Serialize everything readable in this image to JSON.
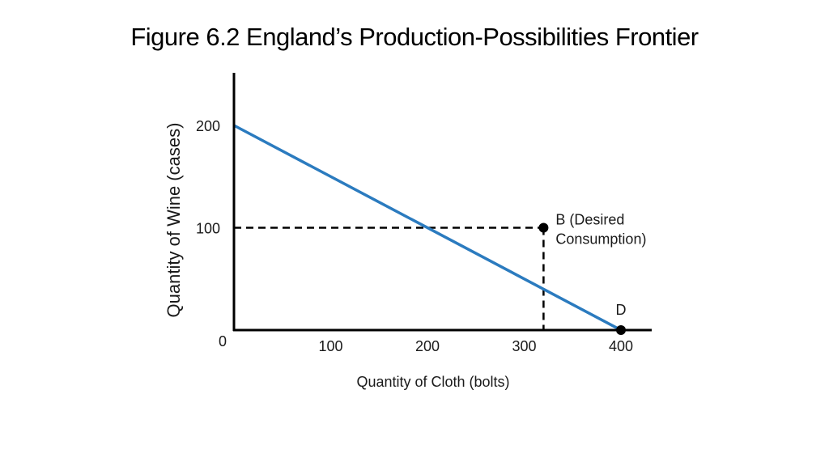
{
  "slide": {
    "title": "Figure 6.2 England’s Production-Possibilities Frontier"
  },
  "chart_data": {
    "type": "line",
    "title": "Figure 6.2 England’s Production-Possibilities Frontier",
    "xlabel": "Quantity of Cloth (bolts)",
    "ylabel": "Quantity of Wine (cases)",
    "xlim": [
      0,
      400
    ],
    "ylim": [
      0,
      200
    ],
    "x_ticks": [
      100,
      200,
      300,
      400
    ],
    "y_ticks": [
      0,
      100,
      200
    ],
    "grid": false,
    "colors": {
      "frontier": "#2b7bbf",
      "axes": "#000000",
      "guides": "#000000"
    },
    "series": [
      {
        "points": [
          {
            "x": 0,
            "y": 200
          },
          {
            "x": 400,
            "y": 0
          }
        ]
      }
    ],
    "guides": [
      {
        "from": {
          "x": 0,
          "y": 100
        },
        "to": {
          "x": 320,
          "y": 100
        },
        "style": "dashed"
      },
      {
        "from": {
          "x": 320,
          "y": 100
        },
        "to": {
          "x": 320,
          "y": 0
        },
        "style": "dashed"
      }
    ],
    "annotations": [
      {
        "id": "B",
        "x": 320,
        "y": 100,
        "label_line1": "B (Desired",
        "label_line2": "Consumption)"
      },
      {
        "id": "D",
        "x": 400,
        "y": 0,
        "label_line1": "D"
      }
    ]
  }
}
